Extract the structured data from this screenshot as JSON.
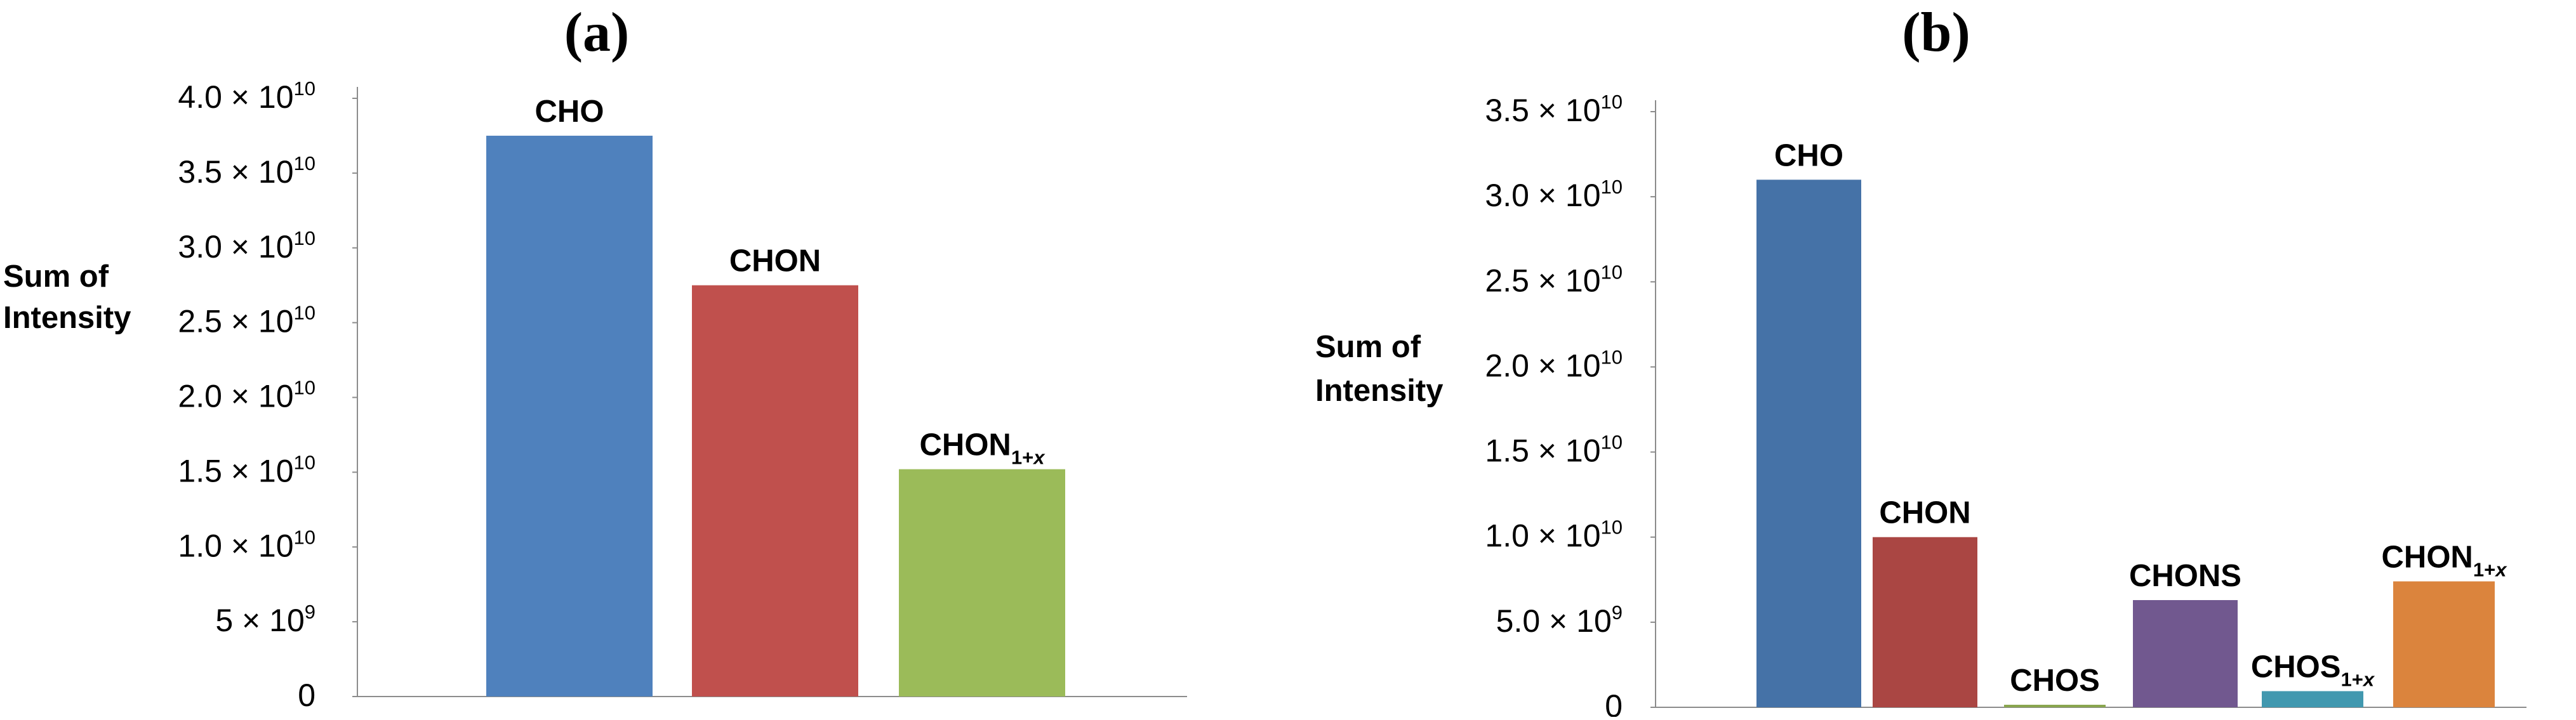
{
  "chart_data": [
    {
      "type": "bar",
      "panel": "(a)",
      "ylabel_lines": [
        "Sum of",
        "Intensity"
      ],
      "ylim": [
        0,
        40000000000
      ],
      "ticks": [
        {
          "value": 0,
          "mant": "0",
          "exp": ""
        },
        {
          "value": 5000000000,
          "mant": "5",
          "exp": "9"
        },
        {
          "value": 10000000000,
          "mant": "1.0",
          "exp": "10"
        },
        {
          "value": 15000000000,
          "mant": "1.5",
          "exp": "10"
        },
        {
          "value": 20000000000,
          "mant": "2.0",
          "exp": "10"
        },
        {
          "value": 25000000000,
          "mant": "2.5",
          "exp": "10"
        },
        {
          "value": 30000000000,
          "mant": "3.0",
          "exp": "10"
        },
        {
          "value": 35000000000,
          "mant": "3.5",
          "exp": "10"
        },
        {
          "value": 40000000000,
          "mant": "4.0",
          "exp": "10"
        }
      ],
      "times_symbol": "×",
      "grid": false,
      "legend": "none",
      "bars": [
        {
          "label": "CHO",
          "sub": "",
          "value": 37500000000,
          "color": "#4f81bd"
        },
        {
          "label": "CHON",
          "sub": "",
          "value": 27500000000,
          "color": "#c0504d"
        },
        {
          "label": "CHON",
          "sub": "1+x",
          "value": 15200000000,
          "color": "#9bbb59"
        }
      ]
    },
    {
      "type": "bar",
      "panel": "(b)",
      "ylabel_lines": [
        "Sum of",
        "Intensity"
      ],
      "ylim": [
        0,
        35000000000
      ],
      "ticks": [
        {
          "value": 0,
          "mant": "0",
          "exp": ""
        },
        {
          "value": 5000000000,
          "mant": "5.0",
          "exp": "9"
        },
        {
          "value": 10000000000,
          "mant": "1.0",
          "exp": "10"
        },
        {
          "value": 15000000000,
          "mant": "1.5",
          "exp": "10"
        },
        {
          "value": 20000000000,
          "mant": "2.0",
          "exp": "10"
        },
        {
          "value": 25000000000,
          "mant": "2.5",
          "exp": "10"
        },
        {
          "value": 30000000000,
          "mant": "3.0",
          "exp": "10"
        },
        {
          "value": 35000000000,
          "mant": "3.5",
          "exp": "10"
        }
      ],
      "times_symbol": "×",
      "grid": false,
      "legend": "none",
      "bars": [
        {
          "label": "CHO",
          "sub": "",
          "value": 31000000000,
          "color": "#4572a7"
        },
        {
          "label": "CHON",
          "sub": "",
          "value": 10000000000,
          "color": "#aa4643"
        },
        {
          "label": "CHOS",
          "sub": "",
          "value": 150000000,
          "color": "#89a54e"
        },
        {
          "label": "CHONS",
          "sub": "",
          "value": 6300000000,
          "color": "#71588f"
        },
        {
          "label": "CHOS",
          "sub": "1+x",
          "value": 950000000,
          "color": "#4198af"
        },
        {
          "label": "CHON",
          "sub": "1+x",
          "value": 7400000000,
          "color": "#db843d"
        }
      ]
    }
  ]
}
